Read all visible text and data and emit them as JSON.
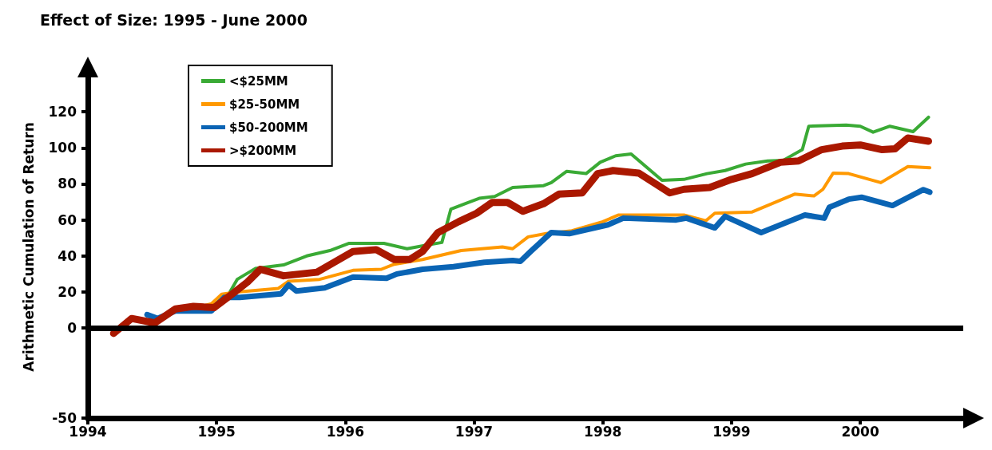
{
  "chart_data": {
    "type": "line",
    "title": "Effect of Size: 1995 - June 2000",
    "ylabel": "Arithmetic Cumulation of Return",
    "xlim": [
      1994,
      2000.8
    ],
    "xticks": [
      1994,
      1995,
      1996,
      1997,
      1998,
      1999,
      2000
    ],
    "ylim": [
      -50,
      140
    ],
    "yticks": [
      -50,
      0,
      20,
      40,
      60,
      80,
      100,
      120
    ],
    "grid": false,
    "legend": "top left",
    "ref_lines": [
      {
        "axis": "y",
        "value": 0,
        "color": "#000000"
      }
    ],
    "marker": "none",
    "line_style": "solid",
    "series": [
      {
        "name": "<$25MM",
        "color": "#3aaa35",
        "x": [
          1995,
          1995.1,
          1995.16,
          1995.3,
          1995.52,
          1995.7,
          1995.88,
          1996.03,
          1996.3,
          1996.48,
          1996.63,
          1996.75,
          1996.82,
          1997.04,
          1997.16,
          1997.3,
          1997.54,
          1997.6,
          1997.72,
          1997.87,
          1997.98,
          1998.1,
          1998.22,
          1998.46,
          1998.63,
          1998.81,
          1998.95,
          1999.11,
          1999.28,
          1999.4,
          1999.55,
          1999.6,
          1999.89,
          2000,
          2000.1,
          2000.23,
          2000.41,
          2000.53
        ],
        "values": [
          14,
          19.5,
          27,
          33,
          35,
          40,
          43,
          47,
          47,
          44,
          46,
          47.5,
          66,
          72,
          73,
          78,
          79,
          80.7,
          87,
          85.7,
          92,
          95.6,
          96.6,
          82,
          82.5,
          85.7,
          87.4,
          91,
          92.7,
          93,
          99,
          112,
          112.6,
          112,
          108.7,
          112,
          109,
          117
        ]
      },
      {
        "name": "$25-50MM",
        "color": "#ff9900",
        "x": [
          1994.68,
          1994.86,
          1994.96,
          1995.04,
          1995.16,
          1995.48,
          1995.56,
          1995.8,
          1996.06,
          1996.28,
          1996.38,
          1996.6,
          1996.9,
          1997.22,
          1997.3,
          1997.42,
          1997.56,
          1997.76,
          1998,
          1998.12,
          1998.63,
          1998.8,
          1998.87,
          1999.16,
          1999.49,
          1999.64,
          1999.71,
          1999.79,
          1999.91,
          2000.16,
          2000.37,
          2000.54
        ],
        "values": [
          10,
          11.5,
          13.5,
          18.8,
          20,
          22,
          26,
          27,
          32,
          32.6,
          35.4,
          38,
          43,
          45,
          44,
          50.6,
          52.4,
          54,
          59,
          62.7,
          62.7,
          59.5,
          63.7,
          64.4,
          74.3,
          73.3,
          77,
          86,
          85.7,
          80.7,
          89.6,
          89
        ]
      },
      {
        "name": "$50-200MM",
        "color": "#0a64b4",
        "x": [
          1994.46,
          1994.54,
          1994.68,
          1994.96,
          1995.06,
          1995.18,
          1995.5,
          1995.56,
          1995.62,
          1995.84,
          1996.06,
          1996.32,
          1996.4,
          1996.6,
          1996.84,
          1997.08,
          1997.3,
          1997.36,
          1997.44,
          1997.6,
          1997.74,
          1998.04,
          1998.16,
          1998.57,
          1998.65,
          1998.87,
          1998.95,
          1999.23,
          1999.57,
          1999.72,
          1999.76,
          1999.91,
          2000.01,
          2000.25,
          2000.49,
          2000.54
        ],
        "values": [
          7.4,
          5.3,
          9.5,
          9.5,
          17,
          17,
          19,
          24,
          20.5,
          22.3,
          28.3,
          27.6,
          30,
          32.6,
          34,
          36.5,
          37.5,
          37,
          42.5,
          53,
          52.4,
          57.3,
          61,
          60,
          61,
          55.6,
          62,
          53,
          62.7,
          61,
          67,
          71.5,
          72.6,
          68,
          76.8,
          75.4
        ]
      },
      {
        "name": ">$200MM",
        "color": "#aa1800",
        "x": [
          1994.2,
          1994.34,
          1994.52,
          1994.68,
          1994.82,
          1994.98,
          1995.12,
          1995.24,
          1995.34,
          1995.52,
          1995.78,
          1996.06,
          1996.24,
          1996.38,
          1996.5,
          1996.6,
          1996.72,
          1996.88,
          1997.02,
          1997.14,
          1997.26,
          1997.38,
          1997.54,
          1997.66,
          1997.84,
          1997.96,
          1998.08,
          1998.28,
          1998.52,
          1998.63,
          1998.83,
          1999,
          1999.16,
          1999.38,
          1999.52,
          1999.7,
          1999.86,
          2000,
          2000.17,
          2000.27,
          2000.37,
          2000.53
        ],
        "values": [
          -3,
          5.3,
          2.8,
          10.6,
          12,
          11.3,
          18.8,
          25.5,
          32.6,
          29,
          31,
          42.5,
          43.5,
          38,
          38,
          42.5,
          53,
          59,
          63.7,
          69.7,
          69.7,
          64.8,
          69,
          74.3,
          75,
          85.7,
          87.4,
          86,
          75,
          77,
          78,
          82.5,
          85.7,
          92,
          92.7,
          99,
          101,
          101.6,
          99,
          99.5,
          105.5,
          103.7
        ]
      }
    ]
  }
}
